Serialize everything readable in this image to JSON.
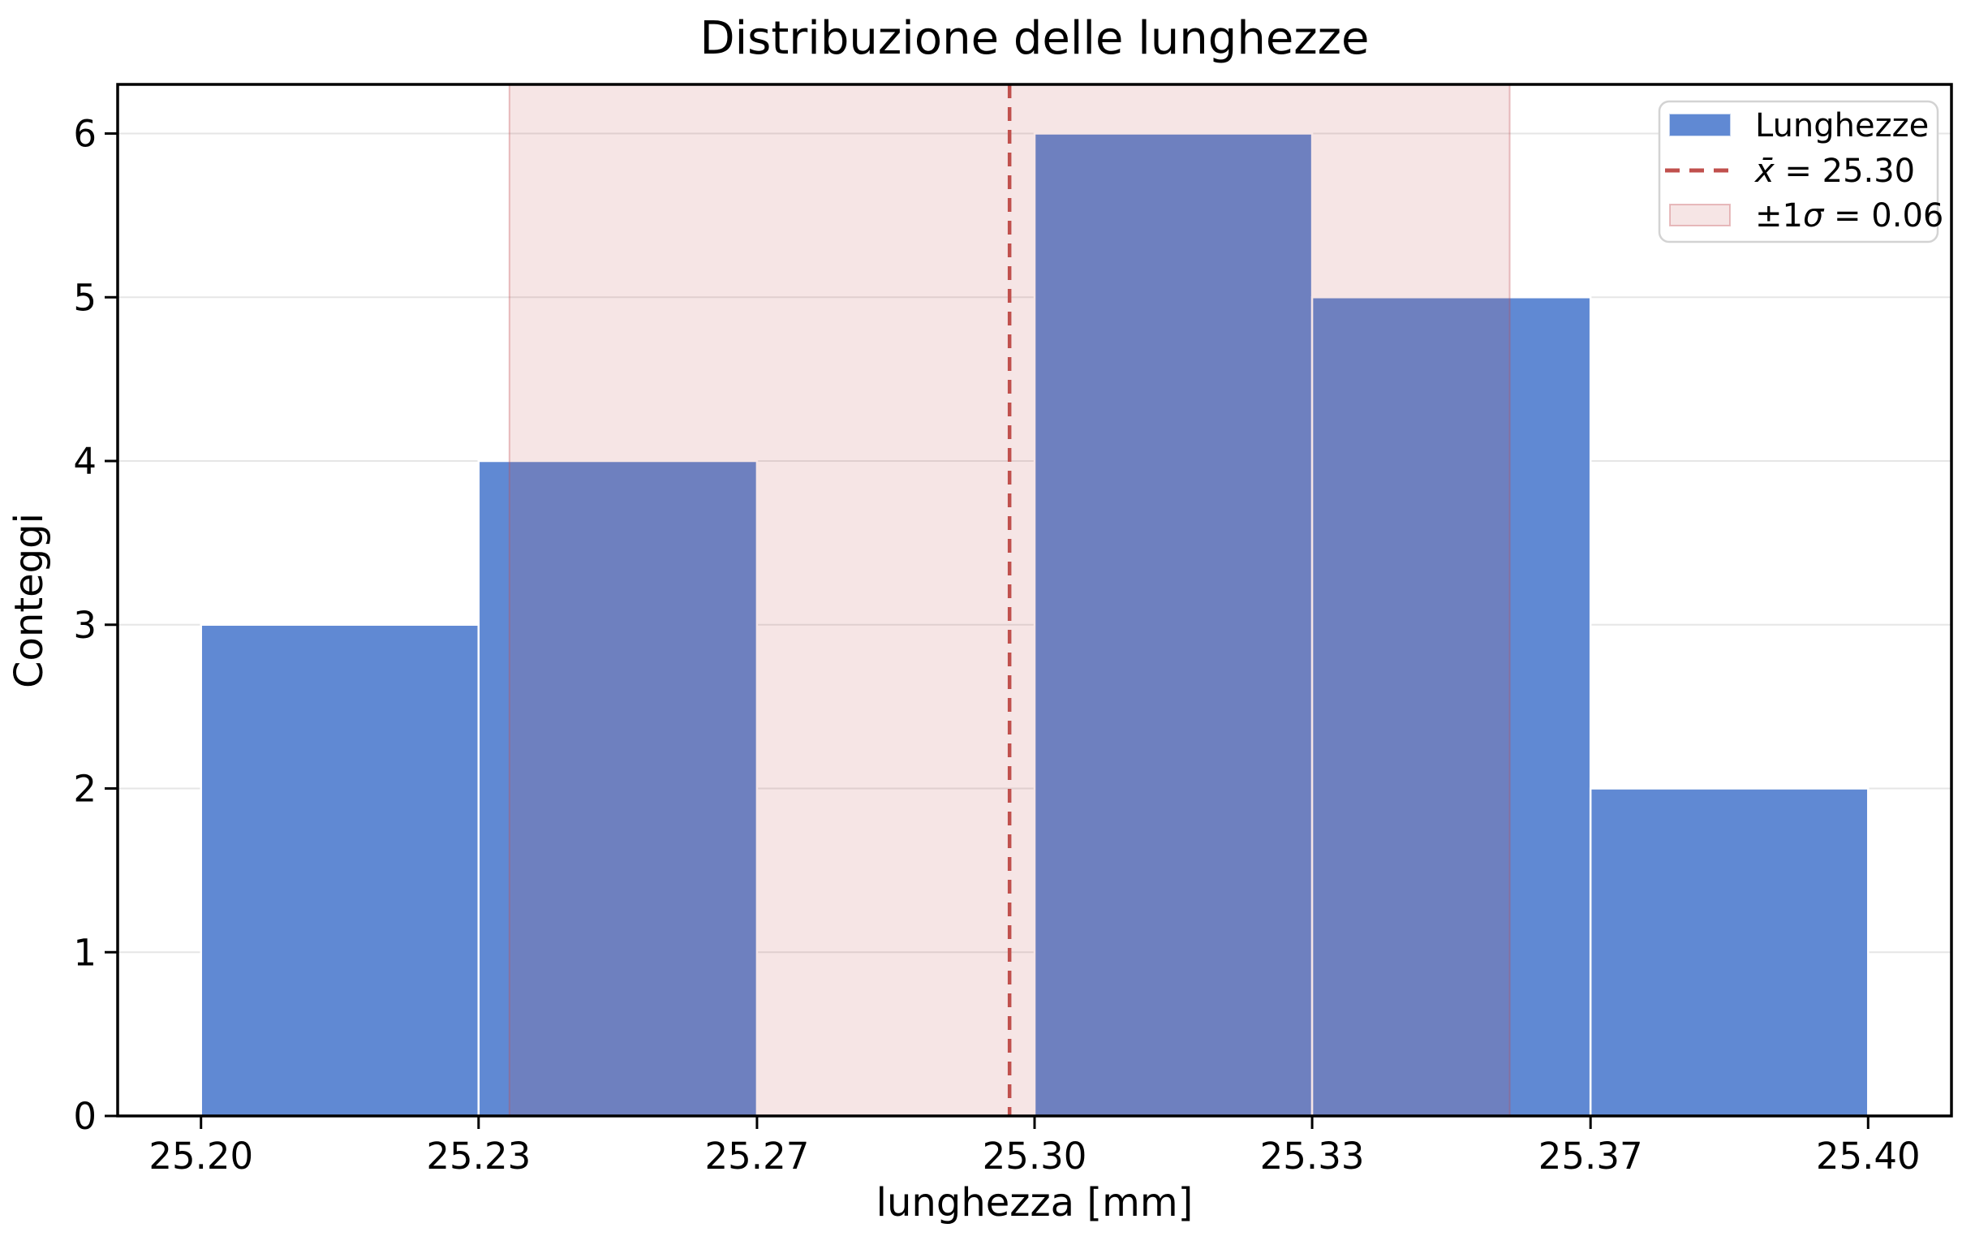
{
  "figure": {
    "title": "Distribuzione delle lunghezze"
  },
  "chart_data": {
    "type": "bar",
    "subtype": "histogram",
    "title": "Distribuzione delle lunghezze",
    "xlabel": "lunghezza [mm]",
    "ylabel": "Conteggi",
    "bin_edges": [
      25.2,
      25.2333,
      25.2667,
      25.3,
      25.3333,
      25.3667,
      25.4
    ],
    "counts": [
      3,
      4,
      0,
      6,
      5,
      2
    ],
    "x_tick_values": [
      25.2,
      25.2333,
      25.2667,
      25.3,
      25.3333,
      25.3667,
      25.4
    ],
    "x_tick_labels": [
      "25.20",
      "25.23",
      "25.27",
      "25.30",
      "25.33",
      "25.37",
      "25.40"
    ],
    "y_ticks": [
      0,
      1,
      2,
      3,
      4,
      5,
      6
    ],
    "xlim": [
      25.19,
      25.41
    ],
    "ylim": [
      0,
      6.3
    ],
    "grid": "horizontal",
    "mean": 25.297,
    "sigma": 0.06,
    "sigma_band": [
      25.237,
      25.357
    ],
    "legend": {
      "position": "top-right",
      "entries": [
        {
          "type": "patch",
          "label": "Lunghezze",
          "swatch": "bar"
        },
        {
          "type": "dashed-line",
          "label": "x̄ = 25.30",
          "swatch": "mean"
        },
        {
          "type": "patch",
          "label": "±1σ = 0.06",
          "swatch": "band"
        }
      ]
    },
    "colors": {
      "bar": "#6089d3",
      "bar_edge": "#ffffff",
      "mean_line": "#c0504d",
      "band_fill": "rgba(196,78,82,0.15)",
      "band_edge": "rgba(196,78,82,0.35)",
      "grid": "#e6e6e6",
      "spine": "#000000",
      "legend_border": "#d3d3d3",
      "legend_bg": "#ffffff"
    }
  }
}
